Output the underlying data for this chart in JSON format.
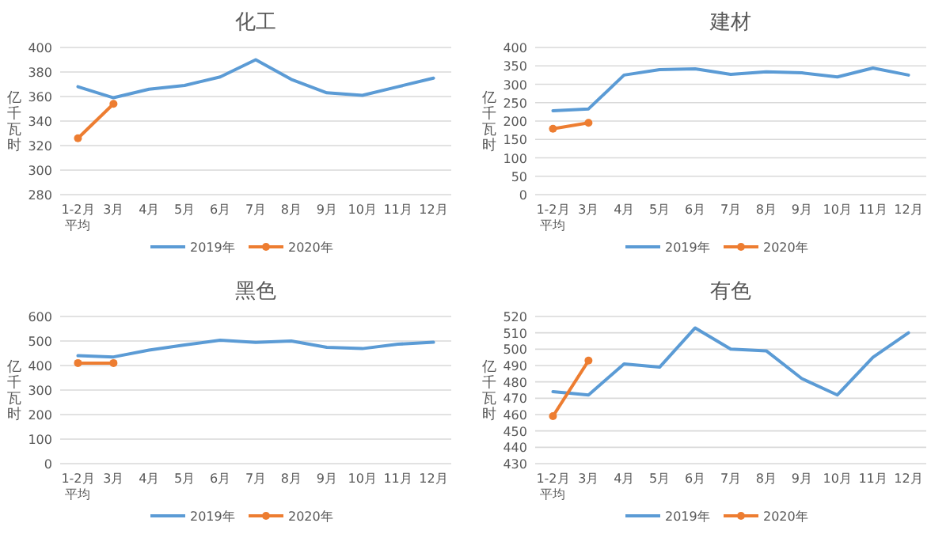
{
  "chart_data": [
    {
      "type": "line",
      "title": "化工",
      "ylabel": "亿千瓦时",
      "categories": [
        "1-2月平均",
        "3月",
        "4月",
        "5月",
        "6月",
        "7月",
        "8月",
        "9月",
        "10月",
        "11月",
        "12月"
      ],
      "ylim": [
        280,
        400
      ],
      "yticks": [
        280,
        300,
        320,
        340,
        360,
        380,
        400
      ],
      "grid": "y",
      "legend": "bottom",
      "series": [
        {
          "name": "2019年",
          "color": "#5b9bd5",
          "marker": "none",
          "values": [
            368,
            359,
            366,
            369,
            376,
            390,
            374,
            363,
            361,
            368,
            375
          ]
        },
        {
          "name": "2020年",
          "color": "#ed7d31",
          "marker": "circle",
          "values": [
            326,
            354,
            null,
            null,
            null,
            null,
            null,
            null,
            null,
            null,
            null
          ]
        }
      ]
    },
    {
      "type": "line",
      "title": "建材",
      "ylabel": "亿千瓦时",
      "categories": [
        "1-2月平均",
        "3月",
        "4月",
        "5月",
        "6月",
        "7月",
        "8月",
        "9月",
        "10月",
        "11月",
        "12月"
      ],
      "ylim": [
        0,
        400
      ],
      "yticks": [
        0,
        50,
        100,
        150,
        200,
        250,
        300,
        350,
        400
      ],
      "grid": "y",
      "legend": "bottom",
      "series": [
        {
          "name": "2019年",
          "color": "#5b9bd5",
          "marker": "none",
          "values": [
            228,
            233,
            325,
            340,
            342,
            327,
            334,
            331,
            320,
            344,
            325
          ]
        },
        {
          "name": "2020年",
          "color": "#ed7d31",
          "marker": "circle",
          "values": [
            179,
            195,
            null,
            null,
            null,
            null,
            null,
            null,
            null,
            null,
            null
          ]
        }
      ]
    },
    {
      "type": "line",
      "title": "黑色",
      "ylabel": "亿千瓦时",
      "categories": [
        "1-2月平均",
        "3月",
        "4月",
        "5月",
        "6月",
        "7月",
        "8月",
        "9月",
        "10月",
        "11月",
        "12月"
      ],
      "ylim": [
        0,
        600
      ],
      "yticks": [
        0,
        100,
        200,
        300,
        400,
        500,
        600
      ],
      "grid": "y",
      "legend": "bottom",
      "series": [
        {
          "name": "2019年",
          "color": "#5b9bd5",
          "marker": "none",
          "values": [
            440,
            435,
            463,
            484,
            503,
            494,
            500,
            474,
            469,
            487,
            495
          ]
        },
        {
          "name": "2020年",
          "color": "#ed7d31",
          "marker": "circle",
          "values": [
            410,
            410,
            null,
            null,
            null,
            null,
            null,
            null,
            null,
            null,
            null
          ]
        }
      ]
    },
    {
      "type": "line",
      "title": "有色",
      "ylabel": "亿千瓦时",
      "categories": [
        "1-2月平均",
        "3月",
        "4月",
        "5月",
        "6月",
        "7月",
        "8月",
        "9月",
        "10月",
        "11月",
        "12月"
      ],
      "ylim": [
        430,
        520
      ],
      "yticks": [
        430,
        440,
        450,
        460,
        470,
        480,
        490,
        500,
        510,
        520
      ],
      "grid": "y",
      "legend": "bottom",
      "series": [
        {
          "name": "2019年",
          "color": "#5b9bd5",
          "marker": "none",
          "values": [
            474,
            472,
            491,
            489,
            513,
            500,
            499,
            482,
            472,
            495,
            510
          ]
        },
        {
          "name": "2020年",
          "color": "#ed7d31",
          "marker": "circle",
          "values": [
            459,
            493,
            null,
            null,
            null,
            null,
            null,
            null,
            null,
            null,
            null
          ]
        }
      ]
    }
  ]
}
